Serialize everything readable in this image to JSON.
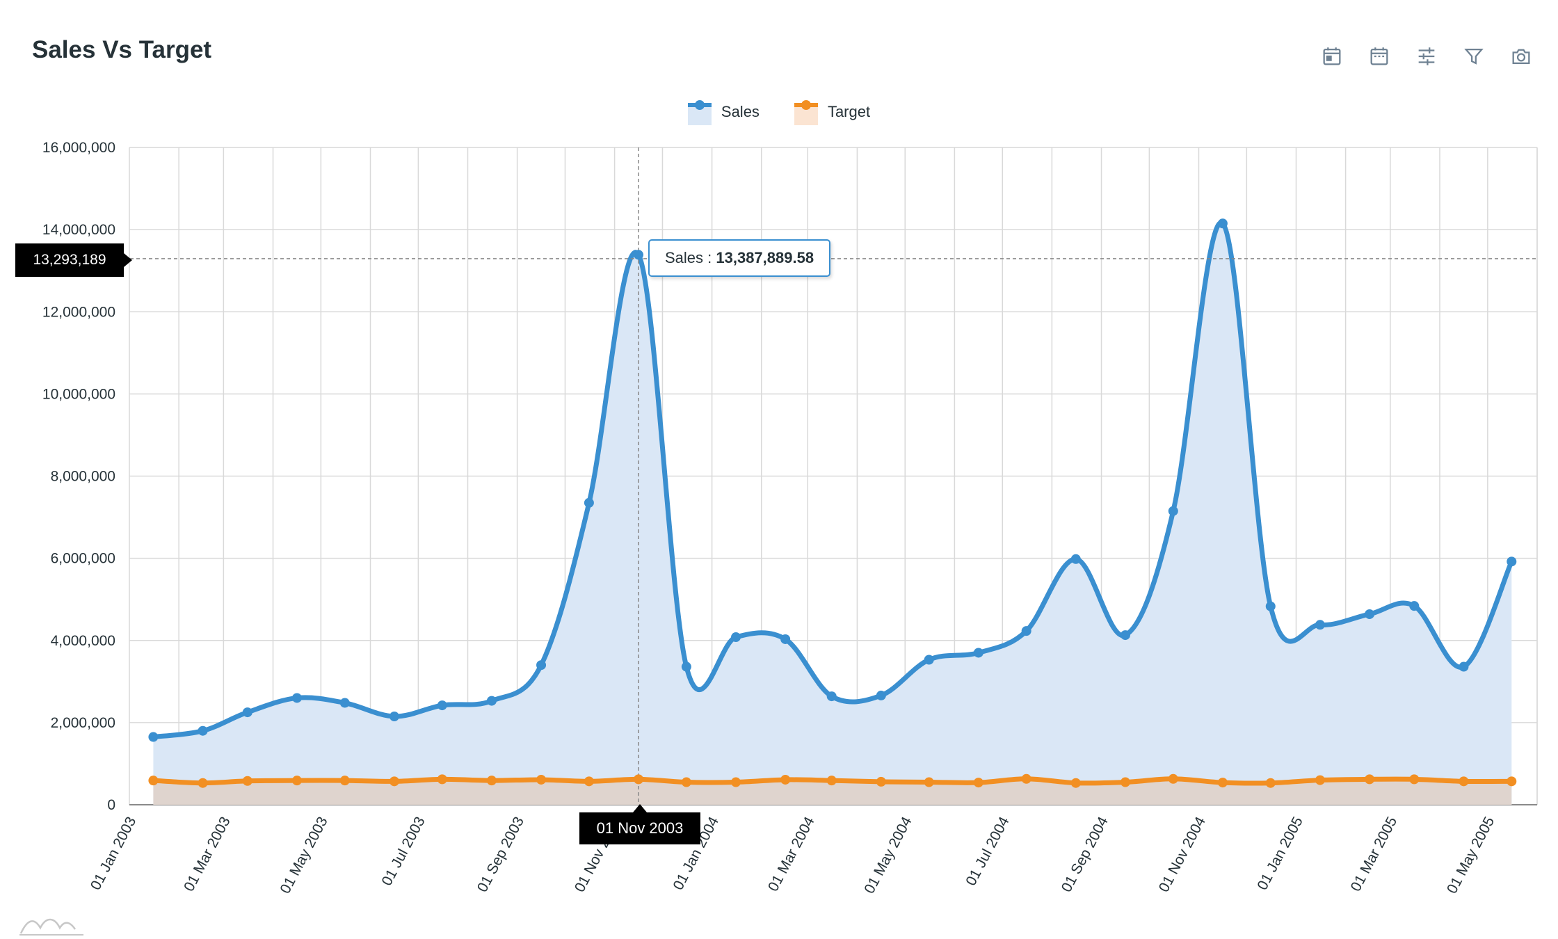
{
  "title": "Sales Vs Target",
  "toolbar": {
    "icons": [
      "calendar-day-icon",
      "calendar-icon",
      "sliders-icon",
      "filter-icon",
      "camera-icon"
    ]
  },
  "legend": {
    "sales_label": "Sales",
    "target_label": "Target"
  },
  "colors": {
    "sales": "#3a8fd0",
    "sales_fill": "#dae7f6",
    "target": "#f28f22",
    "target_fill": "#dfd3cb",
    "grid": "#d9d9d9"
  },
  "tooltip": {
    "label": "Sales : ",
    "value": "13,387,889.58"
  },
  "crosshair": {
    "y_label": "13,293,189",
    "x_label": "01 Nov 2003"
  },
  "chart_data": {
    "type": "area",
    "title": "Sales Vs Target",
    "ylim": [
      0,
      16000000
    ],
    "yticks": [
      "0",
      "2,000,000",
      "4,000,000",
      "6,000,000",
      "8,000,000",
      "10,000,000",
      "12,000,000",
      "14,000,000",
      "16,000,000"
    ],
    "xtick_labels": [
      "01 Jan 2003",
      "01 Mar 2003",
      "01 May 2003",
      "01 Jul 2003",
      "01 Sep 2003",
      "01 Nov 2003",
      "01 Jan 2004",
      "01 Mar 2004",
      "01 May 2004",
      "01 Jul 2004",
      "01 Sep 2004",
      "01 Nov 2004",
      "01 Jan 2005",
      "01 Mar 2005",
      "01 May 2005"
    ],
    "x": [
      "2003-01-16",
      "2003-02-16",
      "2003-03-16",
      "2003-04-16",
      "2003-05-16",
      "2003-06-16",
      "2003-07-16",
      "2003-08-16",
      "2003-09-16",
      "2003-10-16",
      "2003-11-16",
      "2003-12-16",
      "2004-01-16",
      "2004-02-16",
      "2004-03-16",
      "2004-04-16",
      "2004-05-16",
      "2004-06-16",
      "2004-07-16",
      "2004-08-16",
      "2004-09-16",
      "2004-10-16",
      "2004-11-16",
      "2004-12-16",
      "2005-01-16",
      "2005-02-16",
      "2005-03-16",
      "2005-04-16",
      "2005-05-16"
    ],
    "grid": true,
    "legend_position": "top-center",
    "series": [
      {
        "name": "Sales",
        "values": [
          1650000,
          1800000,
          2250000,
          2600000,
          2480000,
          2150000,
          2420000,
          2530000,
          3400000,
          7350000,
          13387889.58,
          3360000,
          4080000,
          4030000,
          2640000,
          2660000,
          3530000,
          3700000,
          4230000,
          5980000,
          4130000,
          7150000,
          14150000,
          4830000,
          4380000,
          4640000,
          4840000,
          3360000,
          5920000
        ]
      },
      {
        "name": "Target",
        "values": [
          590000,
          530000,
          580000,
          590000,
          590000,
          570000,
          620000,
          590000,
          610000,
          570000,
          620000,
          550000,
          550000,
          610000,
          590000,
          560000,
          550000,
          540000,
          630000,
          530000,
          550000,
          630000,
          540000,
          530000,
          600000,
          620000,
          620000,
          570000,
          570000
        ]
      }
    ]
  }
}
